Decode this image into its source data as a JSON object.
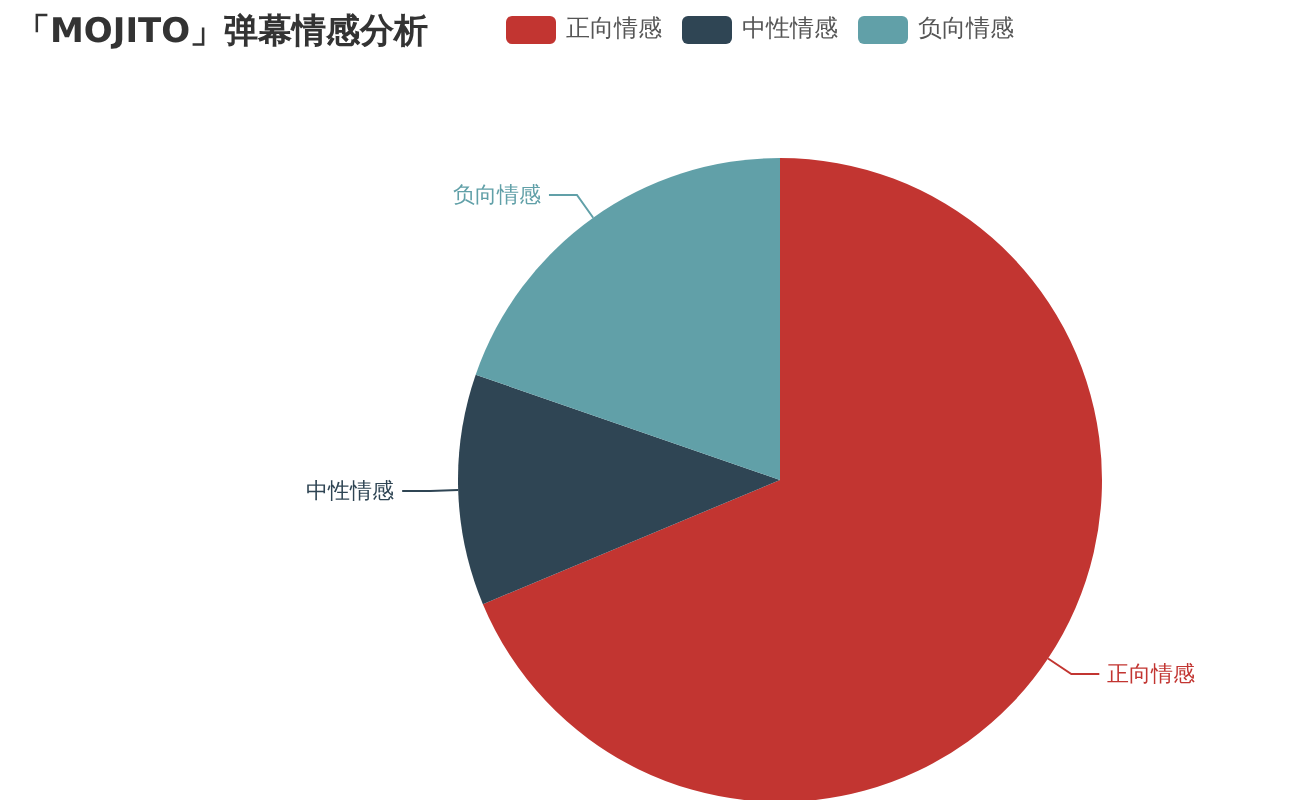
{
  "chart_data": {
    "type": "pie",
    "title": "「MOJITO」弹幕情感分析",
    "categories": [
      "正向情感",
      "中性情感",
      "负向情感"
    ],
    "values": [
      68.7,
      11.6,
      19.7
    ],
    "colors": [
      "#c23531",
      "#2f4554",
      "#61a0a8"
    ],
    "legend": "top"
  }
}
